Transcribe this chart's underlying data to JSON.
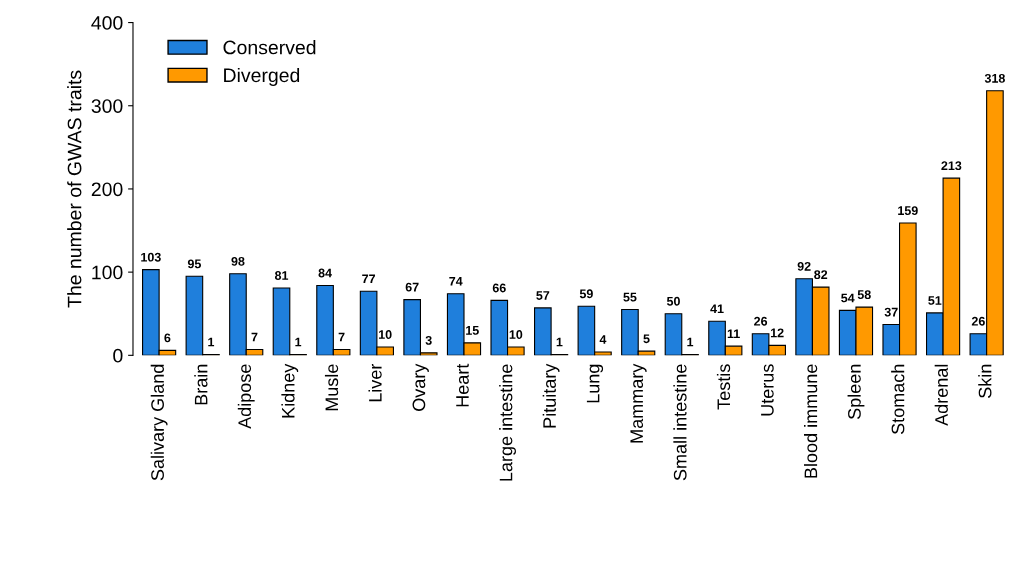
{
  "chart_data": {
    "type": "bar",
    "ylabel": "The number of GWAS traits",
    "categories": [
      "Salivary Gland",
      "Brain",
      "Adipose",
      "Kidney",
      "Musle",
      "Liver",
      "Ovary",
      "Heart",
      "Large intestine",
      "Pituitary",
      "Lung",
      "Mammary",
      "Small intestine",
      "Testis",
      "Uterus",
      "Blood immune",
      "Spleen",
      "Stomach",
      "Adrenal",
      "Skin"
    ],
    "series": [
      {
        "name": "Conserved",
        "color": "#1f7fdc",
        "values": [
          103,
          95,
          98,
          81,
          84,
          77,
          67,
          74,
          66,
          57,
          59,
          55,
          50,
          41,
          26,
          92,
          54,
          37,
          51,
          26
        ]
      },
      {
        "name": "Diverged",
        "color": "#ff9900",
        "values": [
          6,
          1,
          7,
          1,
          7,
          10,
          3,
          15,
          10,
          1,
          4,
          5,
          1,
          11,
          12,
          82,
          58,
          159,
          213,
          318
        ]
      }
    ],
    "ylim": [
      0,
      400
    ],
    "yticks": [
      0,
      100,
      200,
      300,
      400
    ],
    "data_labels": true,
    "grid": false,
    "legend": "top left"
  }
}
